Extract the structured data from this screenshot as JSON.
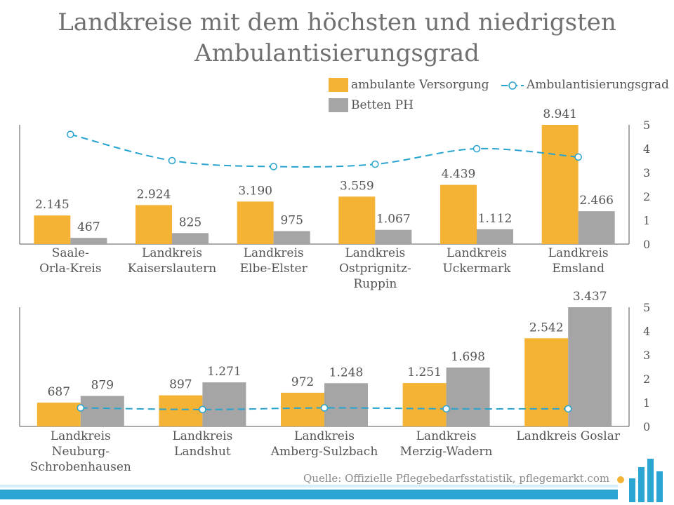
{
  "title_line1": "Landkreise mit dem höchsten und niedrigsten",
  "title_line2": "Ambulantisierungsgrad",
  "legend": {
    "bar1": "ambulante Versorgung",
    "bar2": "Betten PH",
    "line": "Ambulantisierungsgrad"
  },
  "source": "Quelle: Offizielle Pflegebedarfsstatistik, pflegemarkt.com",
  "colors": {
    "bar1": "#f5b335",
    "bar2": "#a5a5a5",
    "line": "#27a3cf"
  },
  "chart_data": [
    {
      "type": "bar",
      "categories": [
        [
          "Saale-",
          "Orla-Kreis"
        ],
        [
          "Landkreis",
          "Kaiserslautern"
        ],
        [
          "Landkreis",
          "Elbe-Elster"
        ],
        [
          "Landkreis",
          "Ostprignitz-",
          "Ruppin"
        ],
        [
          "Landkreis",
          "Uckermark"
        ],
        [
          "Landkreis",
          "Emsland"
        ]
      ],
      "series": [
        {
          "name": "ambulante Versorgung",
          "values": [
            2145,
            2924,
            3190,
            3559,
            4439,
            8941
          ],
          "labels": [
            "2.145",
            "2.924",
            "3.190",
            "3.559",
            "4.439",
            "8.941"
          ]
        },
        {
          "name": "Betten PH",
          "values": [
            467,
            825,
            975,
            1067,
            1112,
            2466
          ],
          "labels": [
            "467",
            "825",
            "975",
            "1.067",
            "1.112",
            "2.466"
          ]
        }
      ],
      "line": {
        "name": "Ambulantisierungsgrad",
        "values": [
          4.6,
          3.5,
          3.25,
          3.35,
          4.0,
          3.65
        ]
      },
      "y2ticks": [
        "0",
        "1",
        "2",
        "3",
        "4",
        "5"
      ],
      "y2lim": [
        0,
        5
      ]
    },
    {
      "type": "bar",
      "categories": [
        [
          "Landkreis",
          "Neuburg-",
          "Schrobenhausen"
        ],
        [
          "Landkreis",
          "Landshut"
        ],
        [
          "Landkreis",
          "Amberg-Sulzbach"
        ],
        [
          "Landkreis",
          "Merzig-Wadern"
        ],
        [
          "Landkreis Goslar"
        ]
      ],
      "series": [
        {
          "name": "ambulante Versorgung",
          "values": [
            687,
            897,
            972,
            1251,
            2542
          ],
          "labels": [
            "687",
            "897",
            "972",
            "1.251",
            "2.542"
          ]
        },
        {
          "name": "Betten PH",
          "values": [
            879,
            1271,
            1248,
            1698,
            3437
          ],
          "labels": [
            "879",
            "1.271",
            "1.248",
            "1.698",
            "3.437"
          ]
        }
      ],
      "line": {
        "name": "Ambulantisierungsgrad",
        "values": [
          0.78,
          0.71,
          0.78,
          0.74,
          0.74
        ]
      },
      "y2ticks": [
        "0",
        "1",
        "2",
        "3",
        "4",
        "5"
      ],
      "y2lim": [
        0,
        5
      ]
    }
  ]
}
